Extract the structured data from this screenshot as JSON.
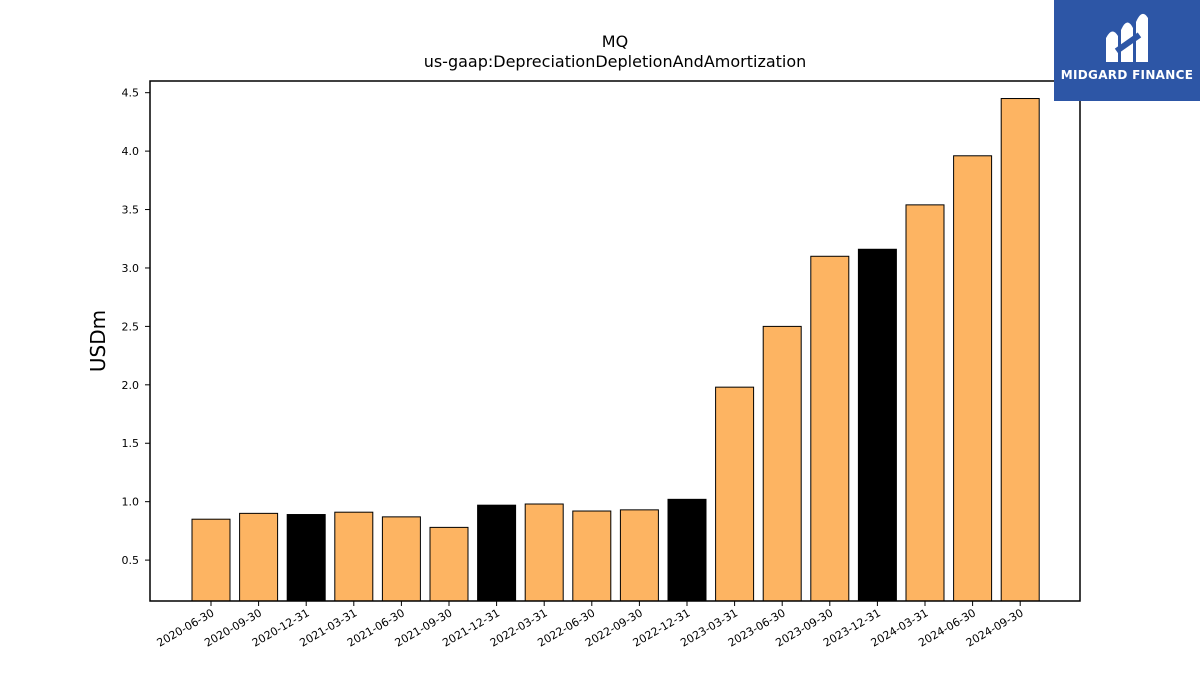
{
  "chart_data": {
    "type": "bar",
    "title": "MQ",
    "subtitle": "us-gaap:DepreciationDepletionAndAmortization",
    "xlabel": "",
    "ylabel": "USDm",
    "ylim": [
      0.15,
      4.6
    ],
    "yticks": [
      "0.5",
      "1.0",
      "1.5",
      "2.0",
      "2.5",
      "3.0",
      "3.5",
      "4.0",
      "4.5"
    ],
    "categories": [
      "2020-06-30",
      "2020-09-30",
      "2020-12-31",
      "2021-03-31",
      "2021-06-30",
      "2021-09-30",
      "2021-12-31",
      "2022-03-31",
      "2022-06-30",
      "2022-09-30",
      "2022-12-31",
      "2023-03-31",
      "2023-06-30",
      "2023-09-30",
      "2023-12-31",
      "2024-03-31",
      "2024-06-30",
      "2024-09-30"
    ],
    "values": [
      0.85,
      0.9,
      0.89,
      0.91,
      0.87,
      0.78,
      0.97,
      0.98,
      0.92,
      0.93,
      1.02,
      1.98,
      2.5,
      3.1,
      3.16,
      3.54,
      3.96,
      4.45
    ],
    "bar_colors": [
      "#fdb462",
      "#fdb462",
      "#000000",
      "#fdb462",
      "#fdb462",
      "#fdb462",
      "#000000",
      "#fdb462",
      "#fdb462",
      "#fdb462",
      "#000000",
      "#fdb462",
      "#fdb462",
      "#fdb462",
      "#000000",
      "#fdb462",
      "#fdb462",
      "#fdb462"
    ],
    "grid": false
  },
  "logo": {
    "text": "MIDGARD FINANCE",
    "background": "#2d56a6"
  }
}
